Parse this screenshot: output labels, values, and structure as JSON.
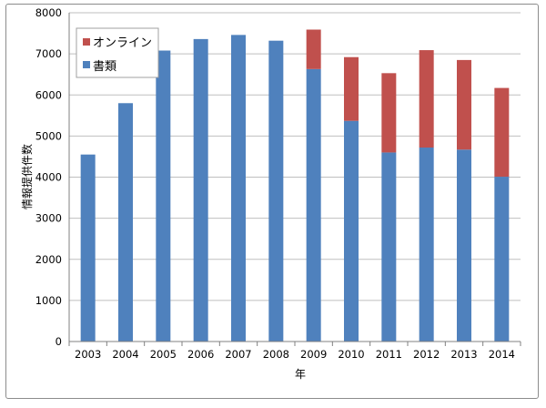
{
  "chart_data": {
    "type": "bar",
    "stacked": true,
    "categories": [
      "2003",
      "2004",
      "2005",
      "2006",
      "2007",
      "2008",
      "2009",
      "2010",
      "2011",
      "2012",
      "2013",
      "2014"
    ],
    "series": [
      {
        "name": "書類",
        "color": "#4f81bd",
        "values": [
          4550,
          5800,
          7080,
          7360,
          7460,
          7320,
          6630,
          5370,
          4600,
          4720,
          4670,
          4010
        ]
      },
      {
        "name": "オンライン",
        "color": "#c0504d",
        "values": [
          0,
          0,
          0,
          0,
          0,
          0,
          960,
          1550,
          1930,
          2370,
          2180,
          2160
        ]
      }
    ],
    "title": "",
    "xlabel": "年",
    "ylabel": "情報提供件数",
    "ylim": [
      0,
      8000
    ],
    "yticks": [
      "0",
      "1000",
      "2000",
      "3000",
      "4000",
      "5000",
      "6000",
      "7000",
      "8000"
    ],
    "grid": "horizontal",
    "legend_position": "top-left"
  }
}
